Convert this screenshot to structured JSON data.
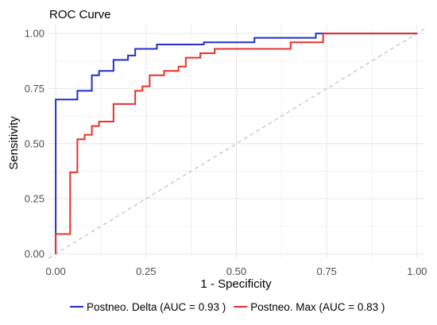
{
  "chart_data": {
    "type": "line",
    "title": "ROC Curve",
    "xlabel": "1 - Specificity",
    "ylabel": "Sensitivity",
    "xlim": [
      -0.02,
      1.02
    ],
    "ylim": [
      -0.02,
      1.04
    ],
    "xticks": [
      0,
      0.25,
      0.5,
      0.75,
      1
    ],
    "xtick_labels": [
      "0.00",
      "0.25",
      "0.50",
      "0.75",
      "1.00"
    ],
    "yticks": [
      0,
      0.25,
      0.5,
      0.75,
      1
    ],
    "ytick_labels": [
      "0.00",
      "0.25",
      "0.50",
      "0.75",
      "1.00"
    ],
    "grid": true,
    "legend_position": "bottom",
    "reference_line": {
      "from": [
        -0.02,
        -0.02
      ],
      "to": [
        1.02,
        1.02
      ],
      "style": "dashed",
      "color": "#b3b3b3"
    },
    "series": [
      {
        "name": "Postneo. Delta (AUC = 0.93 )",
        "color": "#1f2fd0",
        "x": [
          0,
          0,
          0.06,
          0.06,
          0.1,
          0.1,
          0.12,
          0.12,
          0.16,
          0.16,
          0.2,
          0.2,
          0.22,
          0.22,
          0.28,
          0.28,
          0.41,
          0.41,
          0.55,
          0.55,
          0.72,
          0.72,
          1
        ],
        "y": [
          0,
          0.7,
          0.7,
          0.74,
          0.74,
          0.81,
          0.81,
          0.83,
          0.83,
          0.88,
          0.88,
          0.9,
          0.9,
          0.93,
          0.93,
          0.95,
          0.95,
          0.96,
          0.96,
          0.98,
          0.98,
          1,
          1
        ]
      },
      {
        "name": "Postneo. Max (AUC = 0.83 )",
        "color": "#e8312a",
        "x": [
          0,
          0,
          0.04,
          0.04,
          0.06,
          0.06,
          0.08,
          0.08,
          0.1,
          0.1,
          0.12,
          0.12,
          0.16,
          0.16,
          0.22,
          0.22,
          0.24,
          0.24,
          0.26,
          0.26,
          0.3,
          0.3,
          0.34,
          0.34,
          0.36,
          0.36,
          0.4,
          0.4,
          0.44,
          0.44,
          0.65,
          0.65,
          0.74,
          0.74,
          1
        ],
        "y": [
          0,
          0.09,
          0.09,
          0.37,
          0.37,
          0.52,
          0.52,
          0.54,
          0.54,
          0.58,
          0.58,
          0.6,
          0.6,
          0.68,
          0.68,
          0.74,
          0.74,
          0.76,
          0.76,
          0.81,
          0.81,
          0.83,
          0.83,
          0.85,
          0.85,
          0.89,
          0.89,
          0.91,
          0.91,
          0.93,
          0.93,
          0.96,
          0.96,
          1,
          1
        ]
      }
    ]
  }
}
